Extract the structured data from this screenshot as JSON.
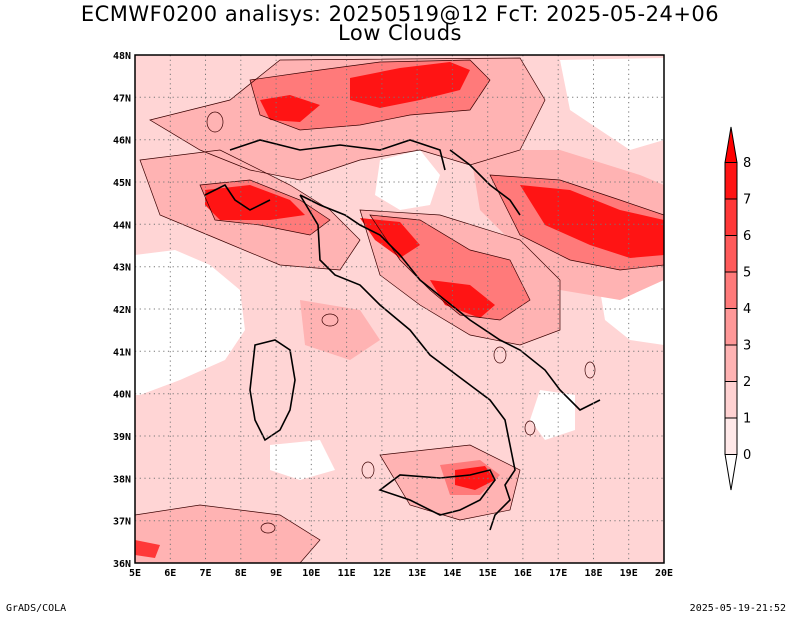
{
  "title": {
    "line1": "ECMWF0200 analisys: 20250519@12 FcT: 2025-05-24+06",
    "line2": "Low Clouds"
  },
  "map": {
    "lon_labels": [
      "5E",
      "6E",
      "7E",
      "8E",
      "9E",
      "10E",
      "11E",
      "12E",
      "13E",
      "14E",
      "15E",
      "16E",
      "17E",
      "18E",
      "19E",
      "20E"
    ],
    "lat_labels": [
      "36N",
      "37N",
      "38N",
      "39N",
      "40N",
      "41N",
      "42N",
      "43N",
      "44N",
      "45N",
      "46N",
      "47N",
      "48N"
    ],
    "lon_range": [
      5,
      20
    ],
    "lat_range": [
      36,
      48
    ],
    "gridlines": "dotted"
  },
  "colorbar": {
    "levels": [
      "0",
      "1",
      "2",
      "3",
      "4",
      "5",
      "6",
      "7",
      "8"
    ],
    "colors": [
      "#ffe9e9",
      "#ffd2d2",
      "#ffb3b3",
      "#ff9898",
      "#ff7a7a",
      "#ff5a5a",
      "#ff3838",
      "#ff1414"
    ]
  },
  "footer": {
    "left": "GrADS/COLA",
    "right": "2025-05-19-21:52"
  }
}
